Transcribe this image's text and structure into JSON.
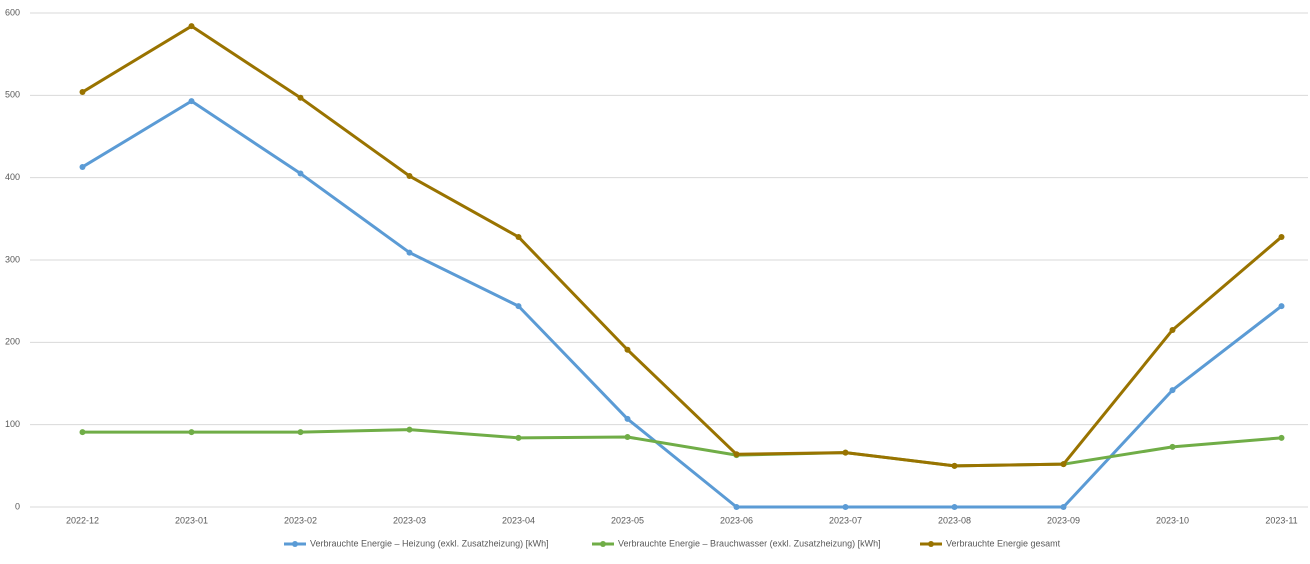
{
  "chart_data": {
    "type": "line",
    "categories": [
      "2022-12",
      "2023-01",
      "2023-02",
      "2023-03",
      "2023-04",
      "2023-05",
      "2023-06",
      "2023-07",
      "2023-08",
      "2023-09",
      "2023-10",
      "2023-11"
    ],
    "series": [
      {
        "name": "Verbrauchte Energie – Heizung (exkl. Zusatzheizung) [kWh]",
        "color": "#5b9bd5",
        "values": [
          413,
          493,
          405,
          309,
          244,
          107,
          0,
          0,
          0,
          0,
          142,
          244
        ]
      },
      {
        "name": "Verbrauchte Energie – Brauchwasser (exkl. Zusatzheizung) [kWh]",
        "color": "#70ad47",
        "values": [
          91,
          91,
          91,
          94,
          84,
          85,
          63,
          66,
          50,
          52,
          73,
          84
        ]
      },
      {
        "name": "Verbrauchte Energie gesamt",
        "color": "#997300",
        "values": [
          504,
          584,
          497,
          402,
          328,
          191,
          64,
          66,
          50,
          52,
          215,
          328
        ]
      }
    ],
    "ylim": [
      0,
      600
    ],
    "yticks": [
      0,
      100,
      200,
      300,
      400,
      500,
      600
    ],
    "grid": true,
    "legend": "bottom"
  }
}
